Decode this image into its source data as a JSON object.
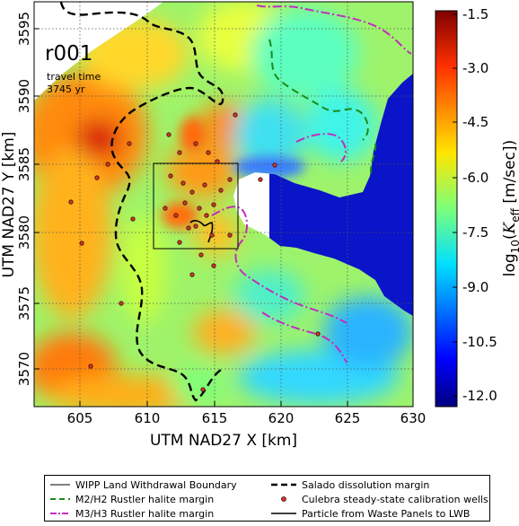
{
  "map_label": {
    "realization": "r001",
    "line1": "travel time",
    "line2": "3745 yr"
  },
  "axes": {
    "xlabel": "UTM NAD27 X [km]",
    "ylabel": "UTM NAD27 Y [km]",
    "xlim": [
      601.7,
      630
    ],
    "ylim": [
      3566.3,
      3597.3
    ],
    "xticks": [
      "605",
      "610",
      "615",
      "620",
      "625",
      "630"
    ],
    "yticks": [
      "3570",
      "3575",
      "3580",
      "3585",
      "3590",
      "3595"
    ],
    "grid": true
  },
  "colorbar": {
    "label": "log10(Keff [m/sec])",
    "label_parts": {
      "log": "log",
      "sub": "10",
      "open": "(",
      "K": "K",
      "eff": "eff",
      "unit": " [m/sec])"
    },
    "ticks": [
      "-1.5",
      "-3.0",
      "-4.5",
      "-6.0",
      "-7.5",
      "-9.0",
      "-10.5",
      "-12.0"
    ],
    "range": [
      -12.0,
      -1.5
    ]
  },
  "legend": {
    "wipp": "WIPP Land Withdrawal Boundary",
    "salado": "Salado dissolution margin",
    "m2h2": "M2/H2 Rustler halite margin",
    "wells": "Culebra steady-state calibration wells",
    "m3h3": "M3/H3 Rustler halite margin",
    "particle": "Particle from Waste Panels to LWB"
  },
  "colors": {
    "salado": "#000000",
    "m2h2": "#1a8a1a",
    "m3h3": "#bf2fbf",
    "wells": "#d62020",
    "particle": "#000000",
    "ocean": "#0a14c8"
  }
}
